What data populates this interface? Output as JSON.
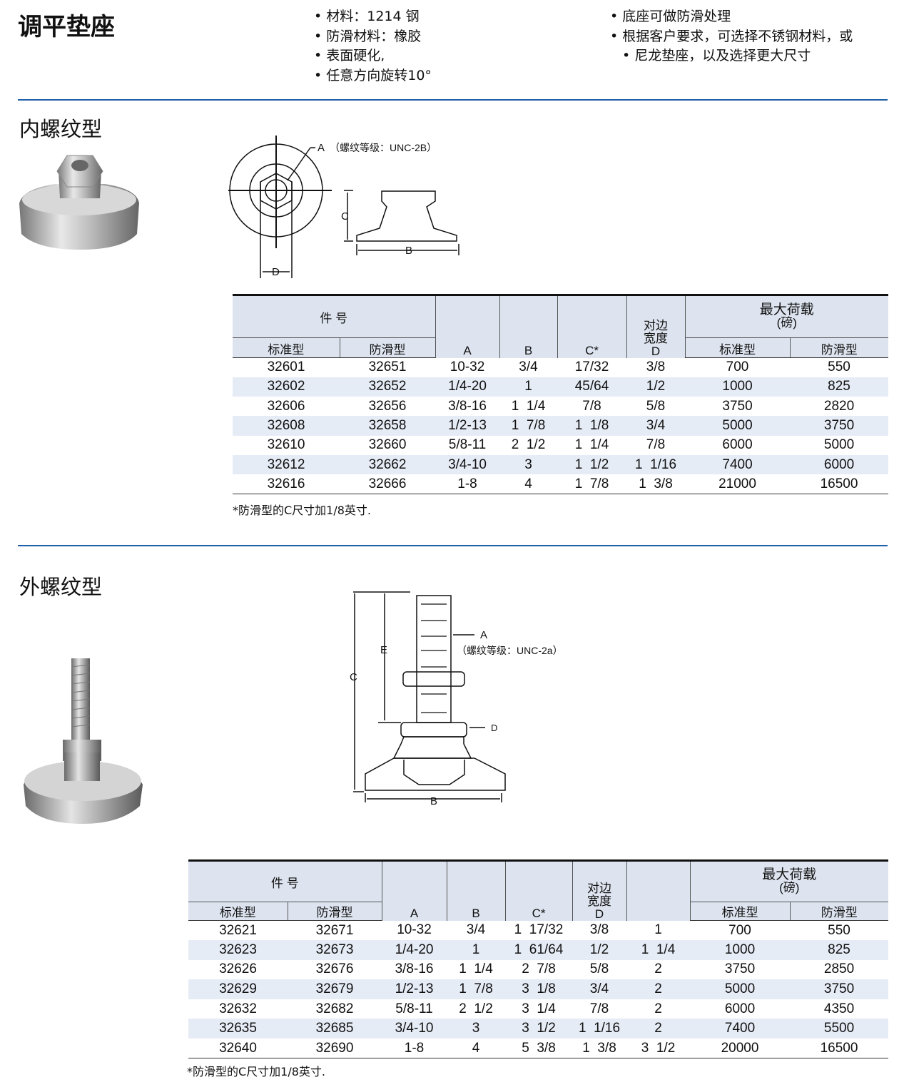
{
  "title": "调平垫座",
  "features_left": [
    "材料：1214 钢",
    "防滑材料：橡胶",
    "表面硬化,",
    "任意方向旋转10°"
  ],
  "features_right": [
    "底座可做防滑处理",
    "根据客户要求，可选择不锈钢材料，或",
    "尼龙垫座，以及选择更大尺寸"
  ],
  "colors": {
    "divider": "#1f5fa8",
    "header_bg": "#dde4ef",
    "row_alt": "#e6ecf6"
  },
  "section1": {
    "title": "内螺纹型",
    "diagram": {
      "a_label": "A",
      "a_note": "（螺纹等级：UNC-2B）",
      "b": "B",
      "c": "C",
      "d": "D"
    },
    "headers": {
      "part_no": "件 号",
      "standard": "标准型",
      "anti_slip": "防滑型",
      "a": "A",
      "b": "B",
      "c": "C*",
      "d_top": "对边\n宽度",
      "d": "D",
      "load": "最大荷载",
      "load_unit": "(磅)",
      "load_std": "标准型",
      "load_anti": "防滑型"
    },
    "rows": [
      [
        "32601",
        "32651",
        "10-32",
        "3/4",
        "17/32",
        "3/8",
        "700",
        "550"
      ],
      [
        "32602",
        "32652",
        "1/4-20",
        "1",
        "45/64",
        "1/2",
        "1000",
        "825"
      ],
      [
        "32606",
        "32656",
        "3/8-16",
        "1  1/4",
        "7/8",
        "5/8",
        "3750",
        "2820"
      ],
      [
        "32608",
        "32658",
        "1/2-13",
        "1  7/8",
        "1  1/8",
        "3/4",
        "5000",
        "3750"
      ],
      [
        "32610",
        "32660",
        "5/8-11",
        "2  1/2",
        "1  1/4",
        "7/8",
        "6000",
        "5000"
      ],
      [
        "32612",
        "32662",
        "3/4-10",
        "3",
        "1  1/2",
        "1  1/16",
        "7400",
        "6000"
      ],
      [
        "32616",
        "32666",
        "1-8",
        "4",
        "1  7/8",
        "1  3/8",
        "21000",
        "16500"
      ]
    ],
    "note": "*防滑型的C尺寸加1/8英寸."
  },
  "section2": {
    "title": "外螺纹型",
    "diagram": {
      "a_label": "A",
      "a_note": "（螺纹等级：UNC-2a）",
      "b": "B",
      "c": "C",
      "d": "D",
      "e": "E"
    },
    "headers": {
      "part_no": "件 号",
      "standard": "标准型",
      "anti_slip": "防滑型",
      "a": "A",
      "b": "B",
      "c": "C*",
      "d_top": "对边\n宽度",
      "d": "D",
      "e": "",
      "load": "最大荷载",
      "load_unit": "(磅)",
      "load_std": "标准型",
      "load_anti": "防滑型"
    },
    "rows": [
      [
        "32621",
        "32671",
        "10-32",
        "3/4",
        "1  17/32",
        "3/8",
        "1",
        "700",
        "550"
      ],
      [
        "32623",
        "32673",
        "1/4-20",
        "1",
        "1  61/64",
        "1/2",
        "1  1/4",
        "1000",
        "825"
      ],
      [
        "32626",
        "32676",
        "3/8-16",
        "1  1/4",
        "2  7/8",
        "5/8",
        "2",
        "3750",
        "2850"
      ],
      [
        "32629",
        "32679",
        "1/2-13",
        "1  7/8",
        "3  1/8",
        "3/4",
        "2",
        "5000",
        "3750"
      ],
      [
        "32632",
        "32682",
        "5/8-11",
        "2  1/2",
        "3  1/4",
        "7/8",
        "2",
        "6000",
        "4350"
      ],
      [
        "32635",
        "32685",
        "3/4-10",
        "3",
        "3  1/2",
        "1  1/16",
        "2",
        "7400",
        "5500"
      ],
      [
        "32640",
        "32690",
        "1-8",
        "4",
        "5  3/8",
        "1  3/8",
        "3  1/2",
        "20000",
        "16500"
      ]
    ],
    "note": "*防滑型的C尺寸加1/8英寸."
  }
}
